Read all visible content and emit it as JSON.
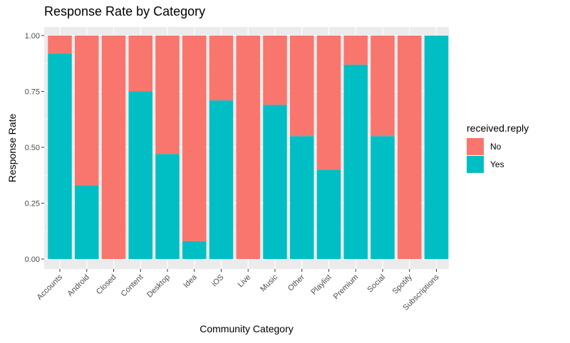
{
  "chart_data": {
    "type": "bar",
    "stacked": true,
    "title": "Response Rate by Category",
    "xlabel": "Community Category",
    "ylabel": "Response Rate",
    "ylim": [
      0,
      1
    ],
    "yticks": [
      "0.00",
      "0.25",
      "0.50",
      "0.75",
      "1.00"
    ],
    "ytick_values": [
      0,
      0.25,
      0.5,
      0.75,
      1.0
    ],
    "grid": true,
    "legend_position": "right",
    "legend_title": "received.reply",
    "categories": [
      "Accounts",
      "Android",
      "Closed",
      "Content",
      "Desktop",
      "Idea",
      "iOS",
      "Live",
      "Music",
      "Other",
      "Playlist",
      "Premium",
      "Social",
      "Spotify",
      "Subscriptions"
    ],
    "series": [
      {
        "name": "No",
        "color": "#F8766D",
        "values": [
          0.08,
          0.67,
          1.0,
          0.25,
          0.53,
          0.92,
          0.29,
          1.0,
          0.31,
          0.45,
          0.6,
          0.13,
          0.45,
          1.0,
          0.0
        ]
      },
      {
        "name": "Yes",
        "color": "#00BFC4",
        "values": [
          0.92,
          0.33,
          0.0,
          0.75,
          0.47,
          0.08,
          0.71,
          0.0,
          0.69,
          0.55,
          0.4,
          0.87,
          0.55,
          0.0,
          1.0
        ]
      }
    ]
  }
}
